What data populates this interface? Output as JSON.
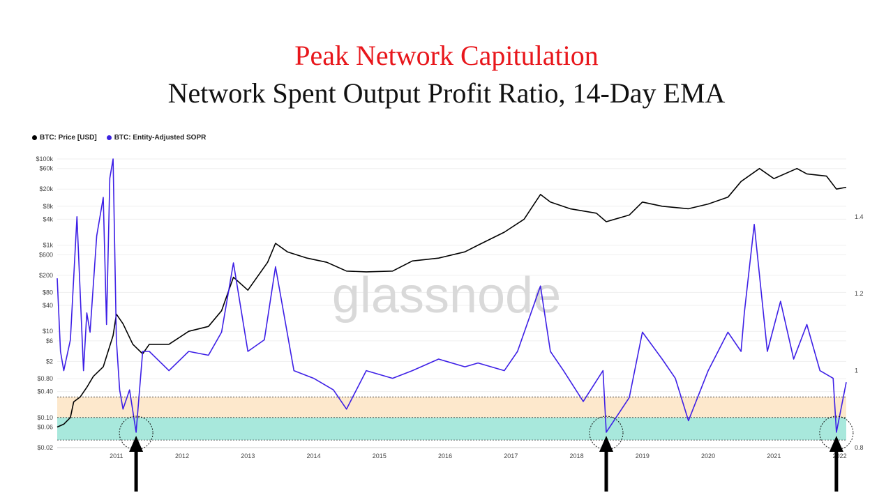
{
  "titles": {
    "main": "Peak Network Capitulation",
    "sub": "Network Spent Output Profit Ratio, 14-Day EMA"
  },
  "legend": [
    {
      "label": "BTC: Price [USD]",
      "color": "#000000"
    },
    {
      "label": "BTC: Entity-Adjusted SOPR",
      "color": "#3b22e0"
    }
  ],
  "watermark": "glassnode",
  "colors": {
    "price_line": "#000000",
    "sopr_line": "#3d1fe6",
    "band_orange": "#fde8cc",
    "band_teal": "#a8e8dc",
    "arrow": "#000000"
  },
  "chart_data": {
    "type": "line",
    "x_ticks": [
      "2011",
      "2012",
      "2013",
      "2014",
      "2015",
      "2016",
      "2017",
      "2018",
      "2019",
      "2020",
      "2021",
      "2022"
    ],
    "y_left_scale": "log",
    "y_left_ticks": [
      "$100k",
      "$60k",
      "$20k",
      "$8k",
      "$4k",
      "$1k",
      "$600",
      "$200",
      "$80",
      "$40",
      "$10",
      "$6",
      "$2",
      "$0.80",
      "$0.40",
      "$0.10",
      "$0.06",
      "$0.02"
    ],
    "y_right_ticks": [
      "1.4",
      "1.2",
      "1",
      "0.8"
    ],
    "xlim": [
      2010.6,
      2022.6
    ],
    "ylim_left": [
      0.02,
      100000
    ],
    "ylim_right": [
      0.8,
      1.55
    ],
    "bands": [
      {
        "name": "orange",
        "price_range": [
          0.1,
          0.3
        ]
      },
      {
        "name": "teal",
        "price_range": [
          0.03,
          0.1
        ]
      }
    ],
    "capitulation_markers": [
      2011.8,
      2018.95,
      2022.45
    ],
    "series": [
      {
        "name": "BTC: Price [USD]",
        "axis": "left",
        "x": [
          2010.6,
          2010.7,
          2010.8,
          2010.85,
          2010.95,
          2011.05,
          2011.15,
          2011.3,
          2011.45,
          2011.5,
          2011.6,
          2011.75,
          2011.9,
          2012.0,
          2012.3,
          2012.6,
          2012.9,
          2013.1,
          2013.28,
          2013.5,
          2013.8,
          2013.92,
          2014.1,
          2014.4,
          2014.7,
          2015.0,
          2015.3,
          2015.7,
          2016.0,
          2016.4,
          2016.8,
          2017.0,
          2017.4,
          2017.7,
          2017.95,
          2018.1,
          2018.4,
          2018.8,
          2018.95,
          2019.3,
          2019.5,
          2019.8,
          2020.2,
          2020.5,
          2020.8,
          2021.0,
          2021.28,
          2021.5,
          2021.85,
          2022.0,
          2022.3,
          2022.45,
          2022.6
        ],
        "values": [
          0.06,
          0.07,
          0.1,
          0.23,
          0.3,
          0.5,
          0.9,
          1.5,
          8,
          25,
          15,
          5,
          3,
          5,
          5,
          10,
          13,
          30,
          180,
          90,
          400,
          1100,
          700,
          500,
          400,
          250,
          240,
          250,
          430,
          500,
          700,
          1000,
          2000,
          4000,
          15000,
          10000,
          7000,
          5500,
          3500,
          5000,
          10000,
          8000,
          7000,
          9000,
          13000,
          30000,
          60000,
          35000,
          60000,
          45000,
          40000,
          20000,
          22000
        ]
      },
      {
        "name": "BTC: Entity-Adjusted SOPR",
        "axis": "right",
        "x": [
          2010.6,
          2010.65,
          2010.7,
          2010.8,
          2010.9,
          2011.0,
          2011.05,
          2011.1,
          2011.2,
          2011.3,
          2011.35,
          2011.4,
          2011.45,
          2011.5,
          2011.55,
          2011.6,
          2011.7,
          2011.8,
          2011.9,
          2012.0,
          2012.3,
          2012.6,
          2012.9,
          2013.1,
          2013.28,
          2013.5,
          2013.75,
          2013.92,
          2014.2,
          2014.5,
          2014.8,
          2015.0,
          2015.3,
          2015.7,
          2016.0,
          2016.4,
          2016.8,
          2017.0,
          2017.4,
          2017.6,
          2017.95,
          2018.1,
          2018.3,
          2018.6,
          2018.9,
          2018.95,
          2019.3,
          2019.5,
          2019.8,
          2020.0,
          2020.2,
          2020.5,
          2020.8,
          2021.0,
          2021.05,
          2021.2,
          2021.4,
          2021.6,
          2021.8,
          2022.0,
          2022.2,
          2022.4,
          2022.45,
          2022.6
        ],
        "values": [
          1.24,
          1.05,
          1.0,
          1.08,
          1.4,
          1.0,
          1.15,
          1.1,
          1.35,
          1.45,
          1.12,
          1.5,
          1.55,
          1.08,
          0.95,
          0.9,
          0.95,
          0.84,
          1.05,
          1.05,
          1.0,
          1.05,
          1.04,
          1.1,
          1.28,
          1.05,
          1.08,
          1.27,
          1.0,
          0.98,
          0.95,
          0.9,
          1.0,
          0.98,
          1.0,
          1.03,
          1.01,
          1.02,
          1.0,
          1.05,
          1.22,
          1.05,
          1.0,
          0.92,
          1.0,
          0.84,
          0.93,
          1.1,
          1.03,
          0.98,
          0.87,
          1.0,
          1.1,
          1.05,
          1.15,
          1.38,
          1.05,
          1.18,
          1.03,
          1.12,
          1.0,
          0.98,
          0.84,
          0.97
        ]
      }
    ]
  }
}
